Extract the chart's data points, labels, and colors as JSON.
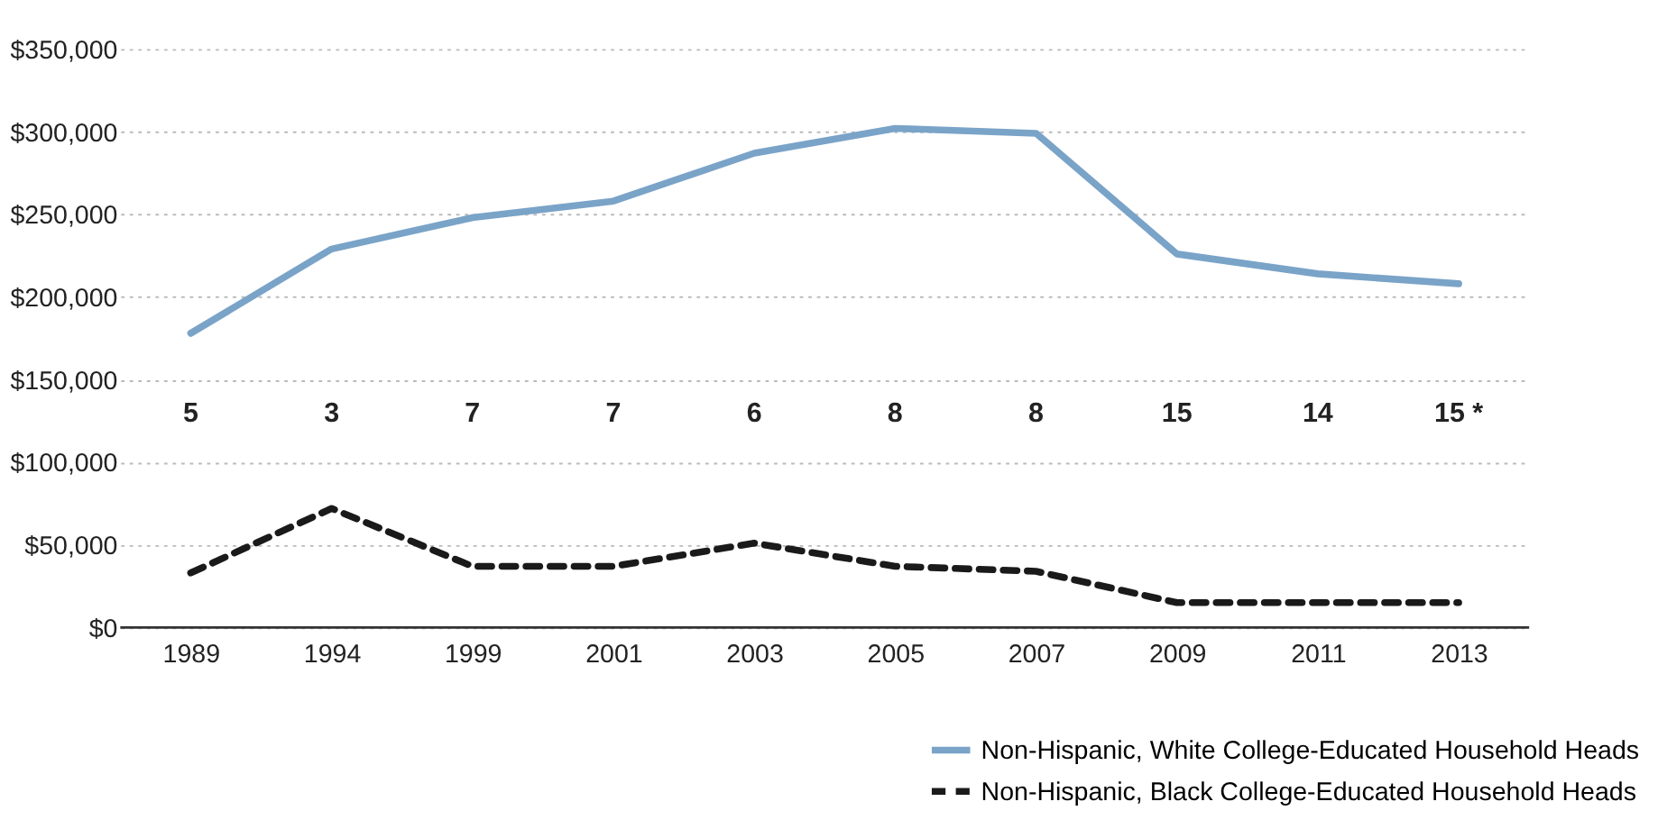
{
  "chart_data": {
    "type": "line",
    "categories": [
      "1989",
      "1994",
      "1999",
      "2001",
      "2003",
      "2005",
      "2007",
      "2009",
      "2011",
      "2013"
    ],
    "series": [
      {
        "name": "Non-Hispanic, White College-Educated Household Heads",
        "color": "#7aa3c8",
        "line_style": "solid",
        "values": [
          178000,
          229000,
          248000,
          258000,
          287000,
          302000,
          299000,
          226000,
          214000,
          208000
        ]
      },
      {
        "name": "Non-Hispanic, Black College-Educated Household Heads",
        "color": "#1a1a1a",
        "line_style": "dashed",
        "values": [
          33000,
          72000,
          37000,
          37000,
          51000,
          37000,
          34000,
          15000,
          15000,
          15000
        ]
      }
    ],
    "annotations": [
      "5",
      "3",
      "7",
      "7",
      "6",
      "8",
      "8",
      "15",
      "14",
      "15 *"
    ],
    "ylim": [
      0,
      350000
    ],
    "yticks": [
      {
        "value": 0,
        "label": "$0"
      },
      {
        "value": 50000,
        "label": "$50,000"
      },
      {
        "value": 100000,
        "label": "$100,000"
      },
      {
        "value": 150000,
        "label": "$150,000"
      },
      {
        "value": 200000,
        "label": "$200,000"
      },
      {
        "value": 250000,
        "label": "$250,000"
      },
      {
        "value": 300000,
        "label": "$300,000"
      },
      {
        "value": 350000,
        "label": "$350,000"
      }
    ],
    "grid": "y",
    "legend": "bottom right",
    "marker": "none"
  }
}
